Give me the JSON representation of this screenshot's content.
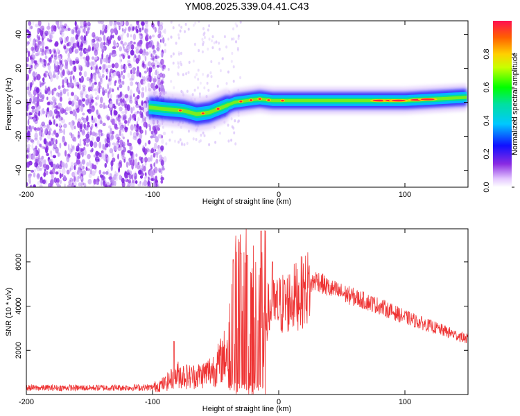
{
  "title": "YM08.2025.339.04.41.C43",
  "chart_data": [
    {
      "type": "heatmap",
      "name": "spectrogram",
      "xlabel": "Height of straight line (km)",
      "ylabel": "Frequency (Hz)",
      "xlim": [
        -200,
        150
      ],
      "ylim": [
        -50,
        48
      ],
      "xticks": [
        -200,
        -100,
        0,
        100
      ],
      "yticks": [
        -40,
        -20,
        0,
        20,
        40
      ],
      "noise_region_x": [
        -200,
        -100
      ],
      "band_center_hz": [
        {
          "x": -102,
          "y": -3
        },
        {
          "x": -90,
          "y": -4
        },
        {
          "x": -75,
          "y": -5
        },
        {
          "x": -65,
          "y": -7
        },
        {
          "x": -55,
          "y": -6
        },
        {
          "x": -45,
          "y": -3
        },
        {
          "x": -35,
          "y": 0
        },
        {
          "x": -25,
          "y": 1
        },
        {
          "x": -15,
          "y": 2
        },
        {
          "x": -5,
          "y": 1
        },
        {
          "x": 10,
          "y": 1
        },
        {
          "x": 50,
          "y": 1
        },
        {
          "x": 100,
          "y": 1
        },
        {
          "x": 150,
          "y": 3
        }
      ],
      "colorbar": {
        "label": "Normalized spectral amplitude",
        "range": [
          0,
          1
        ],
        "ticks": [
          0.0,
          0.2,
          0.4,
          0.6,
          0.8
        ],
        "tick_labels": [
          "0.0",
          "0.2",
          "0.4",
          "0.6",
          "0.8"
        ]
      }
    },
    {
      "type": "line",
      "name": "snr",
      "xlabel": "Height of straight line (km)",
      "ylabel": "SNR (10 * v/v)",
      "xlim": [
        -200,
        150
      ],
      "ylim": [
        0,
        7500
      ],
      "xticks": [
        -200,
        -100,
        0,
        100
      ],
      "yticks": [
        2000,
        4000,
        6000
      ],
      "color": "#ee3333",
      "envelope": [
        {
          "x": -200,
          "y": 300
        },
        {
          "x": -150,
          "y": 300
        },
        {
          "x": -100,
          "y": 320
        },
        {
          "x": -90,
          "y": 500
        },
        {
          "x": -80,
          "y": 900
        },
        {
          "x": -70,
          "y": 800
        },
        {
          "x": -60,
          "y": 900
        },
        {
          "x": -50,
          "y": 1200
        },
        {
          "x": -40,
          "y": 2000
        },
        {
          "x": -35,
          "y": 3500
        },
        {
          "x": -28,
          "y": 4000
        },
        {
          "x": -20,
          "y": 3500
        },
        {
          "x": -15,
          "y": 3200
        },
        {
          "x": -10,
          "y": 3700
        },
        {
          "x": 0,
          "y": 4000
        },
        {
          "x": 10,
          "y": 4300
        },
        {
          "x": 20,
          "y": 4700
        },
        {
          "x": 30,
          "y": 5200
        },
        {
          "x": 40,
          "y": 4800
        },
        {
          "x": 60,
          "y": 4400
        },
        {
          "x": 80,
          "y": 4000
        },
        {
          "x": 100,
          "y": 3500
        },
        {
          "x": 120,
          "y": 3100
        },
        {
          "x": 140,
          "y": 2700
        },
        {
          "x": 150,
          "y": 2500
        }
      ],
      "peaks": [
        {
          "x": -83,
          "y": 2400
        },
        {
          "x": -36,
          "y": 6100
        },
        {
          "x": -30,
          "y": 6400
        },
        {
          "x": -25,
          "y": 6300
        },
        {
          "x": -14,
          "y": 7400
        },
        {
          "x": -5,
          "y": 6000
        }
      ]
    }
  ]
}
